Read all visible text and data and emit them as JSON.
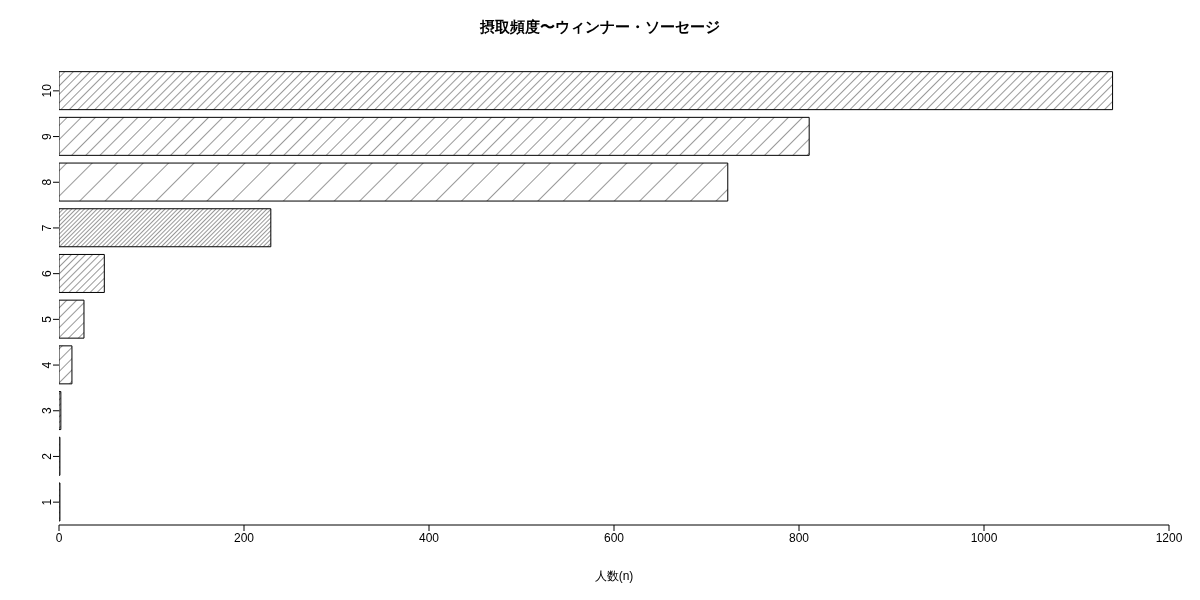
{
  "chart_data": {
    "type": "bar",
    "orientation": "horizontal",
    "title": "摂取頻度〜ウィンナー・ソーセージ",
    "xlabel": "人数(n)",
    "categories": [
      "10",
      "9",
      "8",
      "7",
      "6",
      "5",
      "4",
      "3",
      "2",
      "1"
    ],
    "values": [
      1139,
      811,
      723,
      229,
      49,
      27,
      14,
      2,
      1,
      1
    ],
    "color": "#000000",
    "xlim": [
      0,
      1200
    ],
    "xticks": [
      0,
      200,
      400,
      600,
      800,
      1000,
      1200
    ],
    "grid": false,
    "legend": false
  }
}
